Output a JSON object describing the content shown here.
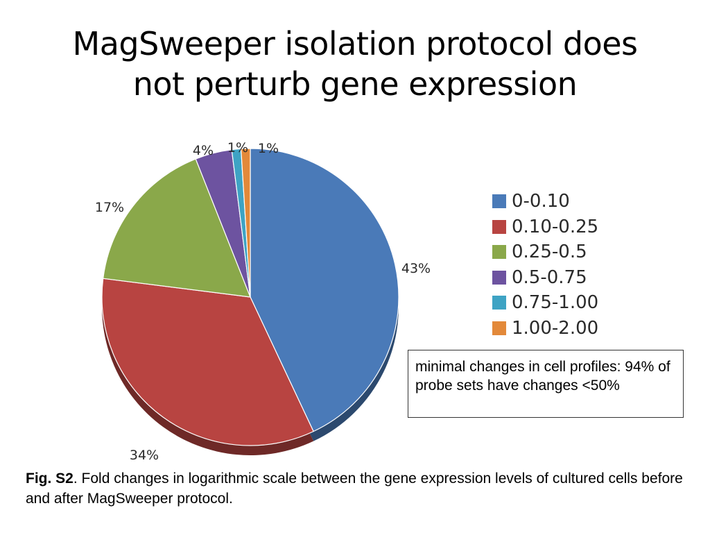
{
  "slide": {
    "title_line1": "MagSweeper isolation protocol does",
    "title_line2": "not perturb gene expression"
  },
  "chart_data": {
    "type": "pie",
    "title": "",
    "slices": [
      {
        "label": "0-0.10",
        "value": 43,
        "value_label": "43%",
        "color": "#4a7ab8"
      },
      {
        "label": "0.10-0.25",
        "value": 34,
        "value_label": "34%",
        "color": "#b84441"
      },
      {
        "label": "0.25-0.5",
        "value": 17,
        "value_label": "17%",
        "color": "#8aa84a"
      },
      {
        "label": "0.5-0.75",
        "value": 4,
        "value_label": "4%",
        "color": "#6d53a0"
      },
      {
        "label": "0.75-1.00",
        "value": 1,
        "value_label": "1%",
        "color": "#3ea3c4"
      },
      {
        "label": "1.00-2.00",
        "value": 1,
        "value_label": "1%",
        "color": "#e3893a"
      }
    ],
    "legend_position": "right"
  },
  "note": {
    "text": "minimal changes in cell profiles: 94% of probe sets have changes <50%"
  },
  "caption": {
    "label": "Fig. S2",
    "text": ". Fold changes in logarithmic scale between the gene expression levels of cultured cells before and after MagSweeper protocol."
  }
}
